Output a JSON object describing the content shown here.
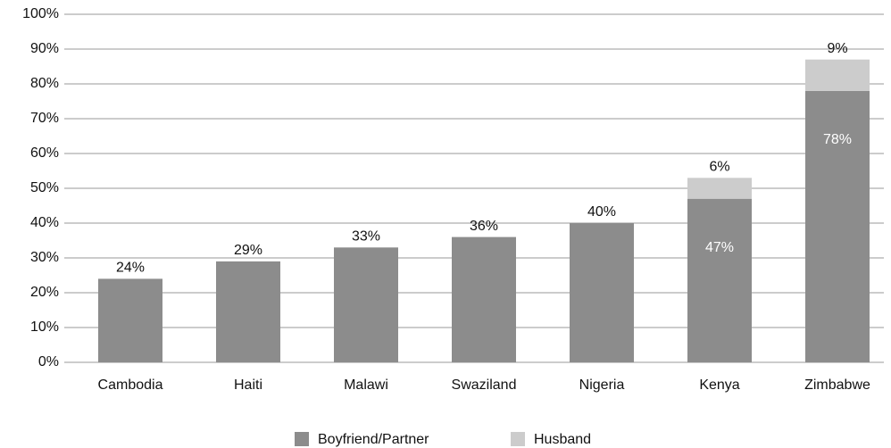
{
  "chart_data": {
    "type": "stacked_bar",
    "categories": [
      "Cambodia",
      "Haiti",
      "Malawi",
      "Swaziland",
      "Nigeria",
      "Kenya",
      "Zimbabwe"
    ],
    "series": [
      {
        "name": "Boyfriend/Partner",
        "color": "#8c8c8c",
        "values": [
          24,
          29,
          33,
          36,
          40,
          47,
          78
        ],
        "value_labels": [
          "24%",
          "29%",
          "33%",
          "36%",
          "40%",
          "47%",
          "78%"
        ]
      },
      {
        "name": "Husband",
        "color": "#cccccc",
        "values": [
          null,
          null,
          null,
          null,
          null,
          6,
          9
        ],
        "value_labels": [
          null,
          null,
          null,
          null,
          null,
          "6%",
          "9%"
        ]
      }
    ],
    "ylim": [
      0,
      100
    ],
    "yticks": [
      {
        "value": 0,
        "label": "0%"
      },
      {
        "value": 10,
        "label": "10%"
      },
      {
        "value": 20,
        "label": "20%"
      },
      {
        "value": 30,
        "label": "30%"
      },
      {
        "value": 40,
        "label": "40%"
      },
      {
        "value": 50,
        "label": "50%"
      },
      {
        "value": 60,
        "label": "60%"
      },
      {
        "value": 70,
        "label": "70%"
      },
      {
        "value": 80,
        "label": "80%"
      },
      {
        "value": 90,
        "label": "90%"
      },
      {
        "value": 100,
        "label": "100%"
      }
    ],
    "grid": true,
    "legend": "bottom"
  }
}
